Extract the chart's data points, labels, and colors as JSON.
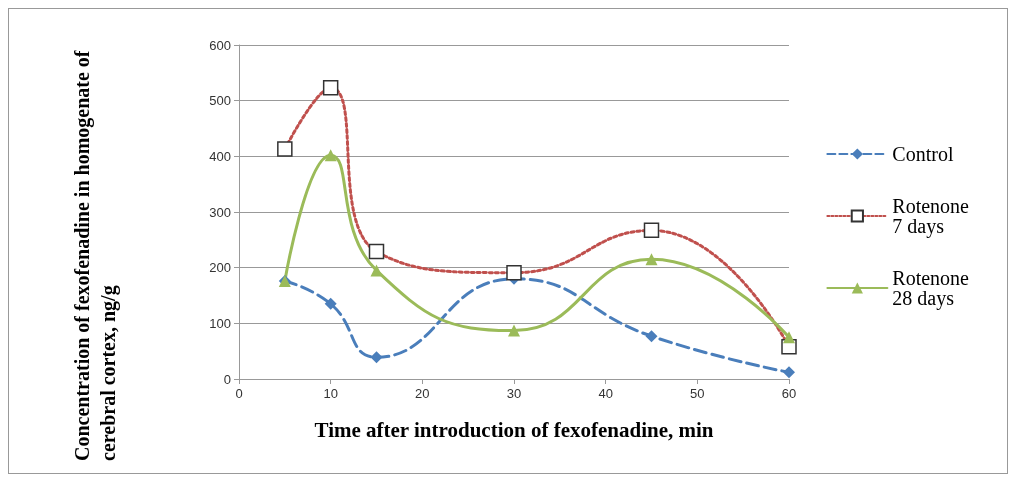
{
  "chart_data": {
    "type": "line",
    "xlabel": "Time after introduction of fexofenadine, min",
    "ylabel": "Concentration of fexofenadine in homogenate of cerebral cortex, ng/g",
    "x": [
      5,
      10,
      15,
      30,
      45,
      60
    ],
    "xlim": [
      0,
      60
    ],
    "xticks": [
      0,
      10,
      20,
      30,
      40,
      50,
      60
    ],
    "ylim": [
      0,
      600
    ],
    "yticks": [
      0,
      100,
      200,
      300,
      400,
      500,
      600
    ],
    "grid": "y",
    "legend": "right",
    "series": [
      {
        "name": "Control",
        "color": "#4a7ebb",
        "values": [
          176,
          135,
          39,
          180,
          77,
          12
        ],
        "marker": "diamond",
        "line_style": "dashed"
      },
      {
        "name": "Rotenone 7 days",
        "color": "#c0504d",
        "values": [
          413,
          523,
          229,
          191,
          267,
          58
        ],
        "marker": "square",
        "line_style": "dotted"
      },
      {
        "name": "Rotenone 28 days",
        "color": "#9bbb59",
        "values": [
          176,
          402,
          195,
          87,
          215,
          75
        ],
        "marker": "triangle",
        "line_style": "solid"
      }
    ]
  }
}
